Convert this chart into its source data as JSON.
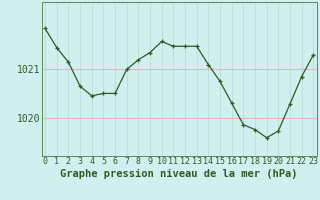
{
  "x": [
    0,
    1,
    2,
    3,
    4,
    5,
    6,
    7,
    8,
    9,
    10,
    11,
    12,
    13,
    14,
    15,
    16,
    17,
    18,
    19,
    20,
    21,
    22,
    23
  ],
  "y": [
    1021.85,
    1021.45,
    1021.15,
    1020.65,
    1020.45,
    1020.5,
    1020.5,
    1021.0,
    1021.2,
    1021.35,
    1021.58,
    1021.48,
    1021.48,
    1021.48,
    1021.1,
    1020.75,
    1020.3,
    1019.85,
    1019.75,
    1019.58,
    1019.72,
    1020.28,
    1020.85,
    1021.3
  ],
  "bg_color": "#cff0ee",
  "line_color": "#2d5a27",
  "marker_color": "#2d5a27",
  "grid_h_color": "#e8b4b8",
  "grid_v_color": "#c0d8d8",
  "xlabel": "Graphe pression niveau de la mer (hPa)",
  "yticks": [
    1020,
    1021
  ],
  "ylim": [
    1019.2,
    1022.4
  ],
  "xlim": [
    -0.3,
    23.3
  ],
  "tick_color": "#2d5a27",
  "spine_color": "#5a8a5a",
  "xlabel_fontsize": 7.5,
  "ytick_fontsize": 7,
  "xtick_fontsize": 6
}
